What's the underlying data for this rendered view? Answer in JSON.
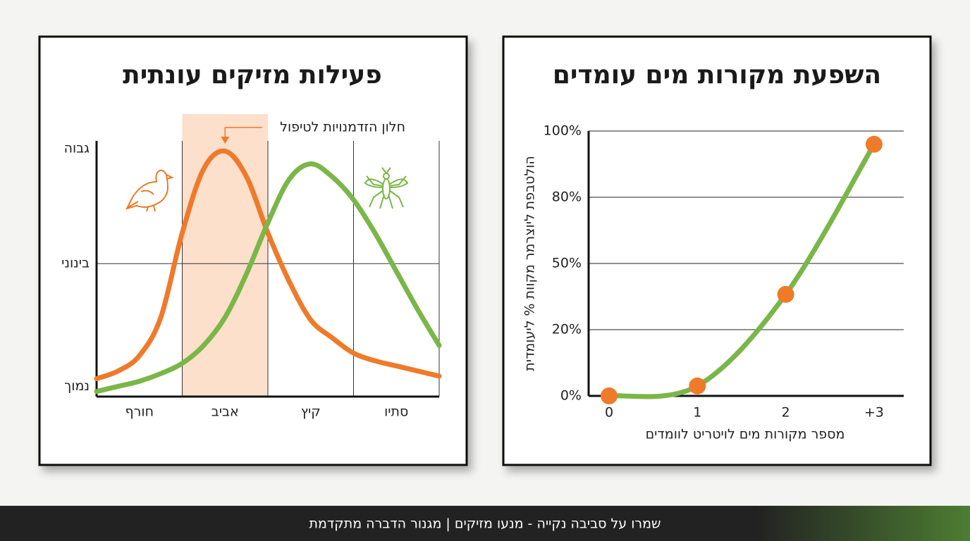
{
  "chart_data": [
    {
      "type": "line",
      "title": "פעילות מזיקים עונתית",
      "annotation": "חלון הזדמנויות לטיפול",
      "highlight": [
        1,
        2
      ],
      "x": [
        0,
        0.25,
        0.5,
        0.75,
        1,
        1.25,
        1.5,
        1.75,
        2,
        2.25,
        2.5,
        2.75,
        3,
        3.25,
        3.5,
        3.75,
        4
      ],
      "xlim": [
        0,
        4
      ],
      "xticks": [
        {
          "value": 0.5,
          "label": "חורף"
        },
        {
          "value": 1.5,
          "label": "אביב"
        },
        {
          "value": 2.5,
          "label": "קיץ"
        },
        {
          "value": 3.5,
          "label": "סתיו"
        }
      ],
      "ylim": [
        0,
        100
      ],
      "yticks": [
        {
          "value": 4,
          "label": "נמוך"
        },
        {
          "value": 52,
          "label": "בינוני"
        },
        {
          "value": 97,
          "label": "גבוה"
        }
      ],
      "grid": true,
      "series": [
        {
          "color": "#ef7a2a",
          "values": [
            7,
            10,
            16,
            31,
            64,
            89,
            96,
            86,
            64,
            45,
            30,
            23,
            17,
            14,
            12,
            10,
            8
          ]
        },
        {
          "color": "#7ab648",
          "values": [
            2,
            4,
            6,
            9,
            13,
            20,
            31,
            48,
            68,
            85,
            91,
            86,
            77,
            64,
            49,
            34,
            20
          ]
        }
      ]
    },
    {
      "type": "line",
      "title": "השפעת מקורות מים עומדים",
      "xlabel": "מספר מקורות מים לויטריט לוומדים",
      "ylabel": "הולטבפת ליוצרמר מקוות % ליעומדית",
      "categories": [
        "0",
        "1",
        "2",
        "+3"
      ],
      "values": [
        0,
        3,
        36,
        96
      ],
      "color": "#7ab648",
      "marker_color": "#ef7a2a",
      "ylim": [
        0,
        100
      ],
      "yscale": "tick-spaced",
      "yticks": [
        {
          "value": 0,
          "label": "0%"
        },
        {
          "value": 20,
          "label": "20%"
        },
        {
          "value": 50,
          "label": "50%"
        },
        {
          "value": 80,
          "label": "80%"
        },
        {
          "value": 100,
          "label": "100%"
        }
      ],
      "grid": true
    }
  ],
  "footer": "שמרו על סביבה נקייה - מנעו מזיקים | מגנור הדברה מתקדמת"
}
